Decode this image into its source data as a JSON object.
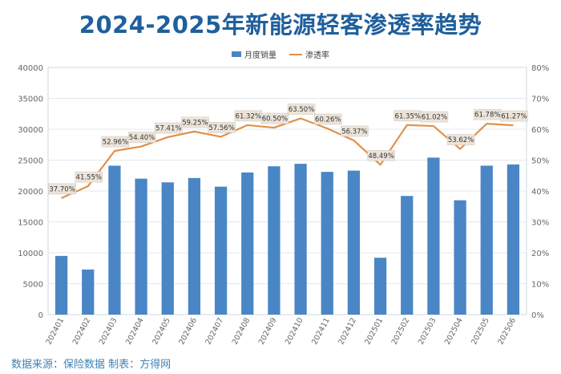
{
  "chart_data": {
    "type": "bar",
    "title": "2024-2025年新能源轻客渗透率趋势",
    "categories": [
      "202401",
      "202402",
      "202403",
      "202404",
      "202405",
      "202406",
      "202407",
      "202408",
      "202409",
      "202410",
      "202411",
      "202412",
      "202501",
      "202502",
      "202503",
      "202504",
      "202505",
      "202506"
    ],
    "series": [
      {
        "name": "月度销量",
        "type": "bar",
        "axis": "left",
        "values": [
          9500,
          7300,
          24100,
          22000,
          21400,
          22100,
          20700,
          23000,
          24000,
          24400,
          23100,
          23300,
          9200,
          19200,
          25400,
          18500,
          24100,
          24300
        ]
      },
      {
        "name": "渗透率",
        "type": "line",
        "axis": "right",
        "values": [
          37.7,
          41.55,
          52.96,
          54.4,
          57.41,
          59.25,
          57.56,
          61.32,
          60.5,
          63.5,
          60.26,
          56.37,
          48.49,
          61.35,
          61.02,
          53.62,
          61.78,
          61.27
        ],
        "labels": [
          "37.70%",
          "41.55%",
          "52.96%",
          "54.40%",
          "57.41%",
          "59.25%",
          "57.56%",
          "61.32%",
          "60.50%",
          "63.50%",
          "60.26%",
          "56.37%",
          "48.49%",
          "61.35%",
          "61.02%",
          "53.62%",
          "61.78%",
          "61.27%"
        ]
      }
    ],
    "y_left": {
      "min": 0,
      "max": 40000,
      "ticks": [
        "0",
        "5000",
        "10000",
        "15000",
        "20000",
        "25000",
        "30000",
        "35000",
        "40000"
      ]
    },
    "y_right": {
      "min": 0,
      "max": 80,
      "ticks": [
        "0%",
        "10%",
        "20%",
        "30%",
        "40%",
        "50%",
        "60%",
        "70%",
        "80%"
      ]
    },
    "legend_position": "top-center",
    "grid": true
  },
  "footer": {
    "source": "数据来源：保险数据 制表：方得网"
  },
  "colors": {
    "bar": "#4a86c5",
    "line": "#e0914a",
    "title": "#1f5f9c",
    "source": "#3d82b6"
  }
}
